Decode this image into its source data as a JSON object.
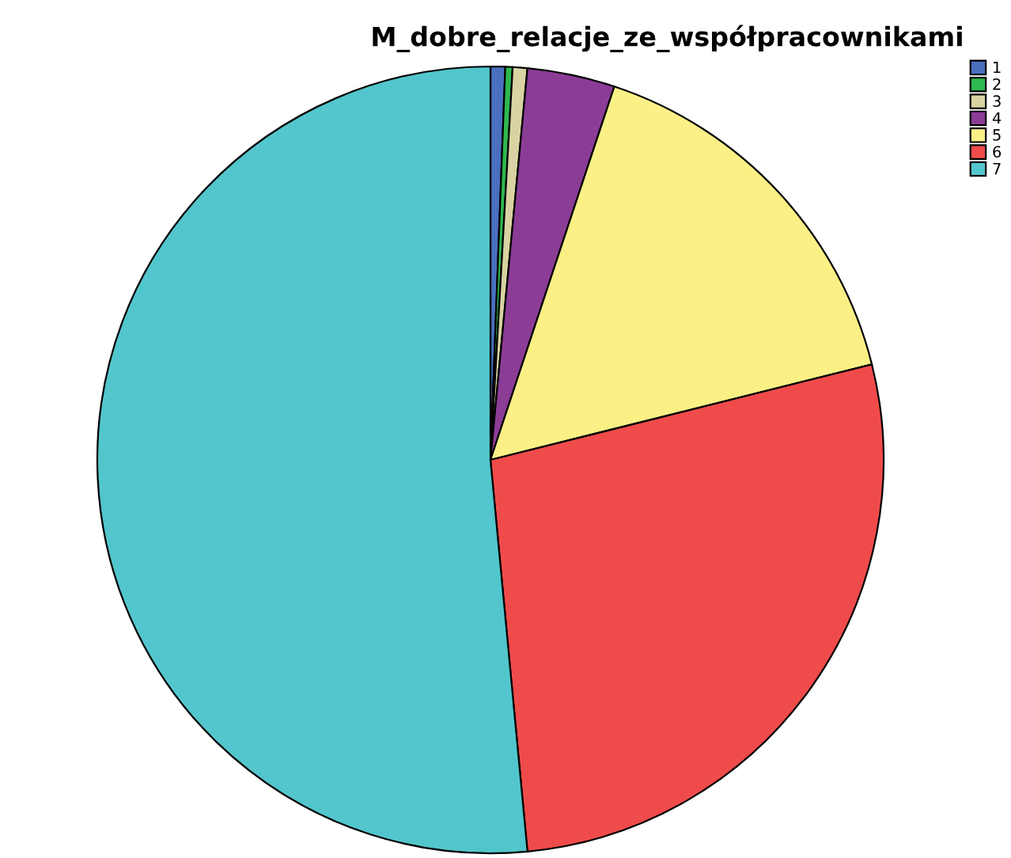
{
  "chart_data": {
    "type": "pie",
    "title": "M_dobre_relacje_ze_współpracownikami",
    "categories": [
      "1",
      "2",
      "3",
      "4",
      "5",
      "6",
      "7"
    ],
    "values": [
      0.6,
      0.3,
      0.6,
      3.6,
      16.0,
      27.4,
      51.5
    ],
    "colors": [
      "#4a6fbf",
      "#2fb84f",
      "#d9d3a3",
      "#8b3d96",
      "#fbf086",
      "#f04b4b",
      "#52c6cc"
    ],
    "legend": "top right"
  }
}
